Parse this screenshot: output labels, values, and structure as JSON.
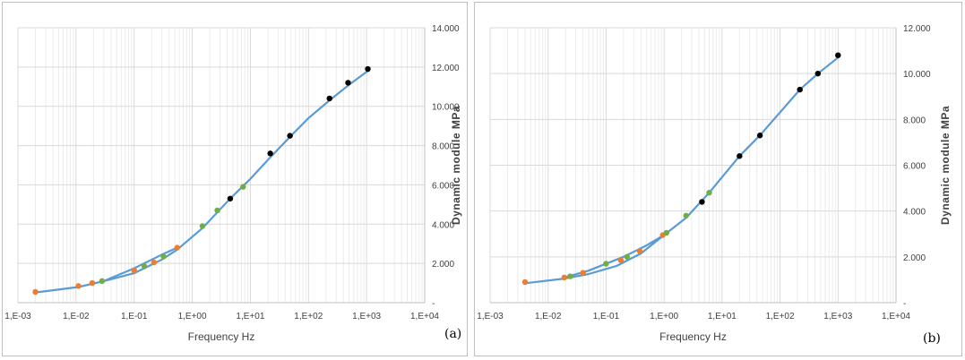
{
  "chart_data": [
    {
      "type": "scatter",
      "panel_label": "(a)",
      "xlabel": "Frequency Hz",
      "ylabel": "Dynamic module  MPa",
      "x_scale": "log",
      "xlim": [
        0.001,
        10000
      ],
      "ylim": [
        0,
        14000
      ],
      "x_ticks": [
        "1,E-03",
        "1,E-02",
        "1,E-01",
        "1,E+00",
        "1,E+01",
        "1,E+02",
        "1,E+03",
        "1,E+04"
      ],
      "y_ticks": [
        "-",
        "2.000",
        "4.000",
        "6.000",
        "8.000",
        "10.000",
        "12.000",
        "14.000"
      ],
      "grid": true,
      "series": [
        {
          "color": "#ed7d31",
          "x": [
            0.002,
            0.011,
            0.019,
            0.1,
            0.22,
            0.55
          ],
          "y": [
            550,
            850,
            1000,
            1650,
            2050,
            2800
          ]
        },
        {
          "color": "#70ad47",
          "x": [
            0.028,
            0.15,
            0.32,
            1.5,
            2.7,
            7.5
          ],
          "y": [
            1100,
            1850,
            2350,
            3900,
            4700,
            5900
          ]
        },
        {
          "color": "#000000",
          "x": [
            4.5,
            22,
            48,
            230,
            480,
            1050
          ],
          "y": [
            5300,
            7600,
            8500,
            10400,
            11200,
            11900
          ]
        },
        {
          "color": "#5b9bd5",
          "line": true,
          "x": [
            0.002,
            0.011,
            0.03,
            0.1,
            0.3,
            0.55,
            1.5,
            4.5,
            10,
            22,
            50,
            100,
            230,
            500,
            1050
          ],
          "y": [
            520,
            800,
            1100,
            1500,
            2200,
            2700,
            3800,
            5300,
            6300,
            7400,
            8500,
            9400,
            10300,
            11100,
            11800
          ]
        },
        {
          "color": "#5b9bd5",
          "line": true,
          "x": [
            0.03,
            0.1,
            0.3,
            0.55
          ],
          "y": [
            1100,
            1750,
            2450,
            2800
          ]
        }
      ]
    },
    {
      "type": "scatter",
      "panel_label": "(b)",
      "xlabel": "Frequency  Hz",
      "ylabel": "Dynamic module  MPa",
      "x_scale": "log",
      "xlim": [
        0.001,
        10000
      ],
      "ylim": [
        0,
        12000
      ],
      "x_ticks": [
        "1,E-03",
        "1,E-02",
        "1,E-01",
        "1,E+00",
        "1,E+01",
        "1,E+02",
        "1,E+03",
        "1,E+04"
      ],
      "y_ticks": [
        "-",
        "2.000",
        "4.000",
        "6.000",
        "8.000",
        "10.000",
        "12.000"
      ],
      "grid": true,
      "series": [
        {
          "color": "#ed7d31",
          "x": [
            0.004,
            0.019,
            0.04,
            0.18,
            0.38,
            0.95
          ],
          "y": [
            900,
            1100,
            1300,
            1850,
            2250,
            2950
          ]
        },
        {
          "color": "#70ad47",
          "x": [
            0.024,
            0.1,
            0.23,
            1.1,
            2.4,
            6
          ],
          "y": [
            1150,
            1700,
            2000,
            3050,
            3800,
            4800
          ]
        },
        {
          "color": "#000000",
          "x": [
            4.5,
            20,
            45,
            220,
            450,
            1000
          ],
          "y": [
            4400,
            6400,
            7300,
            9300,
            10000,
            10800
          ]
        },
        {
          "color": "#5b9bd5",
          "line": true,
          "x": [
            0.004,
            0.019,
            0.05,
            0.15,
            0.4,
            1,
            2.4,
            6,
            20,
            45,
            220,
            450,
            1000
          ],
          "y": [
            850,
            1050,
            1250,
            1600,
            2150,
            2950,
            3700,
            4800,
            6400,
            7300,
            9300,
            10000,
            10700
          ]
        },
        {
          "color": "#5b9bd5",
          "line": true,
          "x": [
            0.019,
            0.05,
            0.2,
            0.5,
            1
          ],
          "y": [
            1100,
            1400,
            2000,
            2500,
            2950
          ]
        }
      ]
    }
  ]
}
